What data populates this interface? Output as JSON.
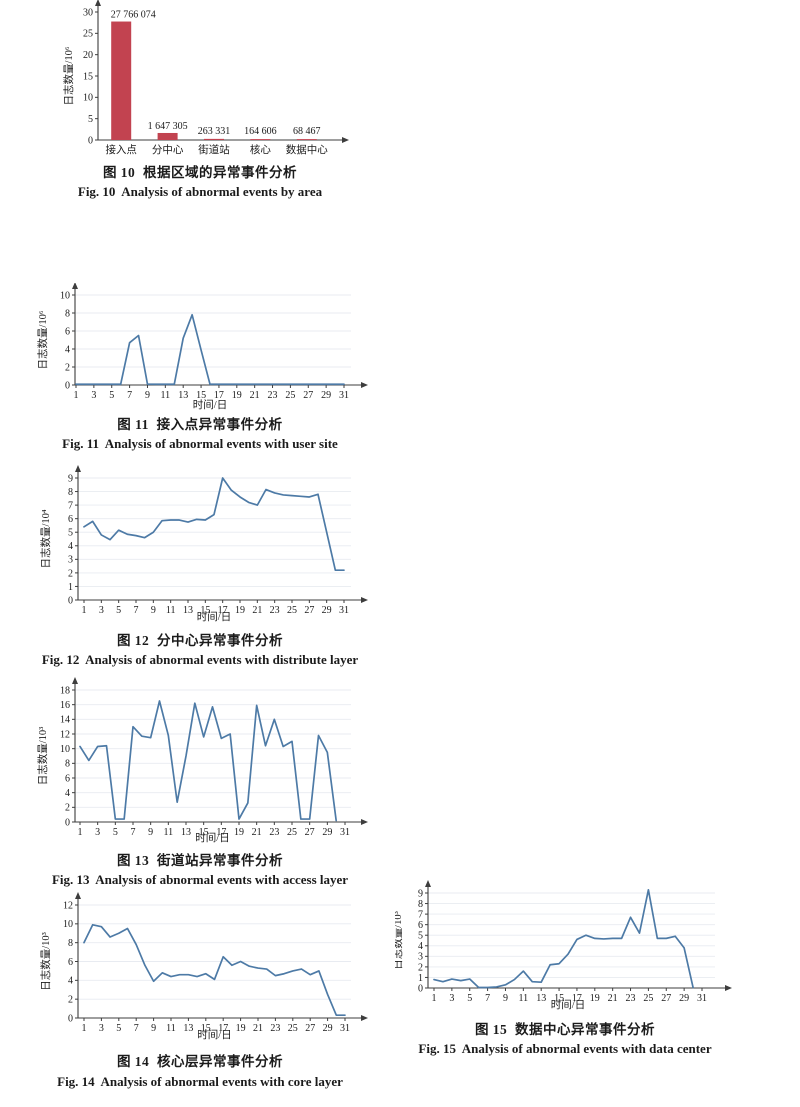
{
  "page": {
    "background": "#ffffff"
  },
  "colors": {
    "bar": "#c24350",
    "line": "#4d7aa6",
    "axis": "#3d3d3d",
    "grid": "#e8ebf1",
    "text": "#1b1b1b"
  },
  "figures": [
    {
      "id": "fig10",
      "caption_zh": "图 10  根据区域的异常事件分析",
      "caption_en": "Fig. 10  Analysis of abnormal events by area"
    },
    {
      "id": "fig11",
      "caption_zh": "图 11  接入点异常事件分析",
      "caption_en": "Fig. 11  Analysis of abnormal events with user site"
    },
    {
      "id": "fig12",
      "caption_zh": "图 12  分中心异常事件分析",
      "caption_en": "Fig. 12  Analysis of abnormal events with distribute layer"
    },
    {
      "id": "fig13",
      "caption_zh": "图 13  街道站异常事件分析",
      "caption_en": "Fig. 13  Analysis of abnormal events with access layer"
    },
    {
      "id": "f14",
      "caption_zh": "图 14  核心层异常事件分析",
      "caption_en": "Fig. 14  Analysis of abnormal events with core layer"
    },
    {
      "id": "fig15",
      "caption_zh": "图 15  数据中心异常事件分析",
      "caption_en": "Fig. 15  Analysis of abnormal events with data center"
    }
  ],
  "chart_data": [
    {
      "type": "bar",
      "title": "图 10 根据区域的异常事件分析 / Fig. 10 Analysis of abnormal events by area",
      "categories": [
        "接入点",
        "分中心",
        "街道站",
        "核心",
        "数据中心"
      ],
      "values": [
        27.766074,
        1.647305,
        0.263331,
        0.164606,
        0.068467
      ],
      "value_labels": [
        "27 766 074",
        "1 647 305",
        "263 331",
        "164 606",
        "68 467"
      ],
      "raw_counts": [
        27766074,
        1647305,
        263331,
        164606,
        68467
      ],
      "xlabel": "",
      "ylabel": "日志数量/10⁶",
      "ylim": [
        0,
        30
      ],
      "ytick_step": 5,
      "grid": false,
      "legend": "none"
    },
    {
      "type": "line",
      "title": "图 11 接入点异常事件分析 / Fig. 11 Analysis of abnormal events with user site",
      "x": [
        1,
        2,
        3,
        4,
        5,
        6,
        7,
        8,
        9,
        10,
        11,
        12,
        13,
        14,
        15,
        16,
        17,
        18,
        19,
        20,
        21,
        22,
        23,
        24,
        25,
        26,
        27,
        28,
        29,
        30,
        31
      ],
      "values": [
        0.08,
        0.08,
        0.08,
        0.08,
        0.08,
        0.08,
        4.7,
        5.5,
        0.1,
        0.08,
        0.08,
        0.08,
        5.2,
        7.8,
        3.9,
        0.08,
        0.08,
        0.08,
        0.08,
        0.08,
        0.08,
        0.08,
        0.08,
        0.08,
        0.08,
        0.08,
        0.08,
        0.08,
        0.08,
        0.08,
        0.08
      ],
      "xlabel": "时间/日",
      "ylabel": "日志数量/10⁶",
      "ylim": [
        0,
        10
      ],
      "ytick_step": 2,
      "xticks": [
        1,
        3,
        5,
        7,
        9,
        11,
        13,
        15,
        17,
        19,
        21,
        23,
        25,
        27,
        29,
        31
      ],
      "grid": true,
      "legend": "none"
    },
    {
      "type": "line",
      "title": "图 12 分中心异常事件分析 / Fig. 12 Analysis of abnormal events with distribute layer",
      "x": [
        1,
        2,
        3,
        4,
        5,
        6,
        7,
        8,
        9,
        10,
        11,
        12,
        13,
        14,
        15,
        16,
        17,
        18,
        19,
        20,
        21,
        22,
        23,
        24,
        25,
        26,
        27,
        28,
        29,
        30,
        31
      ],
      "values": [
        5.4,
        5.8,
        4.8,
        4.45,
        5.15,
        4.85,
        4.75,
        4.6,
        5.0,
        5.85,
        5.9,
        5.9,
        5.75,
        5.95,
        5.9,
        6.3,
        9.0,
        8.1,
        7.6,
        7.2,
        7.0,
        8.15,
        7.9,
        7.75,
        7.7,
        7.65,
        7.6,
        7.8,
        5.0,
        2.2,
        2.2
      ],
      "xlabel": "时间/日",
      "ylabel": "日志数量/10⁴",
      "ylim": [
        0,
        9
      ],
      "ytick_step": 1,
      "xticks": [
        1,
        3,
        5,
        7,
        9,
        11,
        13,
        15,
        17,
        19,
        21,
        23,
        25,
        27,
        29,
        31
      ],
      "grid": true,
      "legend": "none"
    },
    {
      "type": "line",
      "title": "图 13 街道站异常事件分析 / Fig. 13 Analysis of abnormal events with access layer",
      "x": [
        1,
        2,
        3,
        4,
        5,
        6,
        7,
        8,
        9,
        10,
        11,
        12,
        13,
        14,
        15,
        16,
        17,
        18,
        19,
        20,
        21,
        22,
        23,
        24,
        25,
        26,
        27,
        28,
        29,
        30,
        31
      ],
      "values": [
        10.3,
        8.4,
        10.3,
        10.4,
        0.4,
        0.4,
        13.0,
        11.7,
        11.5,
        16.5,
        11.8,
        2.7,
        9.0,
        16.2,
        11.6,
        15.7,
        11.4,
        12.0,
        0.4,
        2.6,
        15.9,
        10.4,
        14.0,
        10.3,
        11.0,
        0.4,
        0.4,
        11.8,
        9.5,
        0.2,
        null
      ],
      "xlabel": "时间/日",
      "ylabel": "日志数量/10³",
      "ylim": [
        0,
        18
      ],
      "ytick_step": 2,
      "xticks": [
        1,
        3,
        5,
        7,
        9,
        11,
        13,
        15,
        17,
        19,
        21,
        23,
        25,
        27,
        29,
        31
      ],
      "grid": true,
      "legend": "none"
    },
    {
      "type": "line",
      "title": "图 14 核心层异常事件分析 / Fig. 14 Analysis of abnormal events with core layer",
      "x": [
        1,
        2,
        3,
        4,
        5,
        6,
        7,
        8,
        9,
        10,
        11,
        12,
        13,
        14,
        15,
        16,
        17,
        18,
        19,
        20,
        21,
        22,
        23,
        24,
        25,
        26,
        27,
        28,
        29,
        30,
        31
      ],
      "values": [
        8.0,
        9.9,
        9.7,
        8.6,
        9.0,
        9.5,
        7.8,
        5.6,
        3.9,
        4.8,
        4.4,
        4.6,
        4.6,
        4.4,
        4.7,
        4.1,
        6.5,
        5.6,
        6.0,
        5.5,
        5.3,
        5.2,
        4.5,
        4.7,
        5.0,
        5.2,
        4.6,
        5.0,
        2.5,
        0.3,
        0.3
      ],
      "xlabel": "时间/日",
      "ylabel": "日志数量/10³",
      "ylim": [
        0,
        12
      ],
      "ytick_step": 2,
      "xticks": [
        1,
        3,
        5,
        7,
        9,
        11,
        13,
        15,
        17,
        19,
        21,
        23,
        25,
        27,
        29,
        31
      ],
      "grid": true,
      "legend": "none"
    },
    {
      "type": "line",
      "title": "图 15 数据中心异常事件分析 / Fig. 15 Analysis of abnormal events with data center",
      "x": [
        1,
        2,
        3,
        4,
        5,
        6,
        7,
        8,
        9,
        10,
        11,
        12,
        13,
        14,
        15,
        16,
        17,
        18,
        19,
        20,
        21,
        22,
        23,
        24,
        25,
        26,
        27,
        28,
        29,
        30,
        31
      ],
      "values": [
        0.8,
        0.6,
        0.85,
        0.7,
        0.85,
        0.05,
        0.05,
        0.1,
        0.3,
        0.8,
        1.6,
        0.6,
        0.55,
        2.2,
        2.3,
        3.2,
        4.6,
        5.0,
        4.7,
        4.65,
        4.7,
        4.7,
        6.7,
        5.2,
        9.3,
        4.7,
        4.7,
        4.9,
        3.8,
        0.05,
        null
      ],
      "xlabel": "时间/日",
      "ylabel": "日志数量/10³",
      "ylim": [
        0,
        9
      ],
      "ytick_step": 1,
      "xticks": [
        1,
        3,
        5,
        7,
        9,
        11,
        13,
        15,
        17,
        19,
        21,
        23,
        25,
        27,
        29,
        31
      ],
      "grid": true,
      "legend": "none"
    }
  ]
}
